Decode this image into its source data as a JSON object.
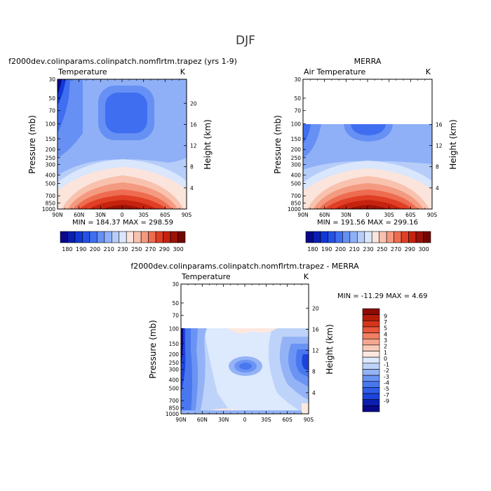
{
  "page_title": "DJF",
  "colors": {
    "temp_palette": [
      "#08088a",
      "#0a1fb0",
      "#1238d6",
      "#2352e8",
      "#3f6ef0",
      "#6690f4",
      "#8fb0f7",
      "#b6cdf9",
      "#d9e6fc",
      "#fbe4dc",
      "#f8c2ae",
      "#f49a80",
      "#ee6c50",
      "#e03f25",
      "#c5230f",
      "#9c1306",
      "#730604"
    ],
    "diff_palette": [
      "#08088a",
      "#0a1fb0",
      "#1d43dd",
      "#2e5ee9",
      "#4877ef",
      "#6b93f3",
      "#94b3f6",
      "#bed3fa",
      "#dde9fd",
      "#fde8de",
      "#f9cbb7",
      "#f5a68e",
      "#f07f63",
      "#e8573b",
      "#d53519",
      "#b51d08",
      "#8c0b03"
    ]
  },
  "chart_data": [
    {
      "type": "heatmap",
      "title": "f2000dev.colinparams.colinpatch.nomflrtm.trapez (yrs 1-9)",
      "subtitle": "Temperature",
      "units": "K",
      "ylabel": "Pressure (mb)",
      "ylabel_right": "Height (km)",
      "x_ticks": [
        "90N",
        "60N",
        "30N",
        "0",
        "30S",
        "60S",
        "90S"
      ],
      "y_ticks": [
        "30",
        "50",
        "70",
        "100",
        "150",
        "200",
        "250",
        "300",
        "400",
        "500",
        "700",
        "850",
        "1000"
      ],
      "y_ticks_right": [
        "20",
        "16",
        "12",
        "8",
        "4"
      ],
      "stats": "MIN = 184.37   MAX = 298.59",
      "colorbar_labels": [
        "180",
        "190",
        "200",
        "210",
        "230",
        "250",
        "270",
        "290",
        "300"
      ],
      "colorbar_levels": 17
    },
    {
      "type": "heatmap",
      "title": "MERRA",
      "subtitle": "Air Temperature",
      "units": "K",
      "ylabel": "Pressure (mb)",
      "ylabel_right": "Height (km)",
      "x_ticks": [
        "90N",
        "60N",
        "30N",
        "0",
        "30S",
        "60S",
        "90S"
      ],
      "y_ticks": [
        "30",
        "50",
        "70",
        "100",
        "150",
        "200",
        "250",
        "300",
        "400",
        "500",
        "700",
        "850",
        "1000"
      ],
      "y_ticks_right": [
        "16",
        "12",
        "8",
        "4"
      ],
      "stats": "MIN = 191.56   MAX = 299.16",
      "colorbar_labels": [
        "180",
        "190",
        "200",
        "210",
        "230",
        "250",
        "270",
        "290",
        "300"
      ],
      "colorbar_levels": 17
    },
    {
      "type": "heatmap",
      "title": "f2000dev.colinparams.colinpatch.nomflrtm.trapez - MERRA",
      "subtitle": "Temperature",
      "units": "K",
      "ylabel": "Pressure (mb)",
      "ylabel_right": "Height (km)",
      "x_ticks": [
        "90N",
        "60N",
        "30N",
        "0",
        "30S",
        "60S",
        "90S"
      ],
      "y_ticks": [
        "30",
        "50",
        "70",
        "100",
        "150",
        "200",
        "250",
        "300",
        "400",
        "500",
        "700",
        "850",
        "1000"
      ],
      "y_ticks_right": [
        "20",
        "16",
        "12",
        "8",
        "4"
      ],
      "stats": "MIN = -11.29   MAX =   4.69",
      "colorbar_labels": [
        "9",
        "7",
        "5",
        "4",
        "3",
        "2",
        "1",
        "0",
        "-1",
        "-2",
        "-3",
        "-4",
        "-5",
        "-7",
        "-9"
      ],
      "colorbar_levels": 17
    }
  ]
}
